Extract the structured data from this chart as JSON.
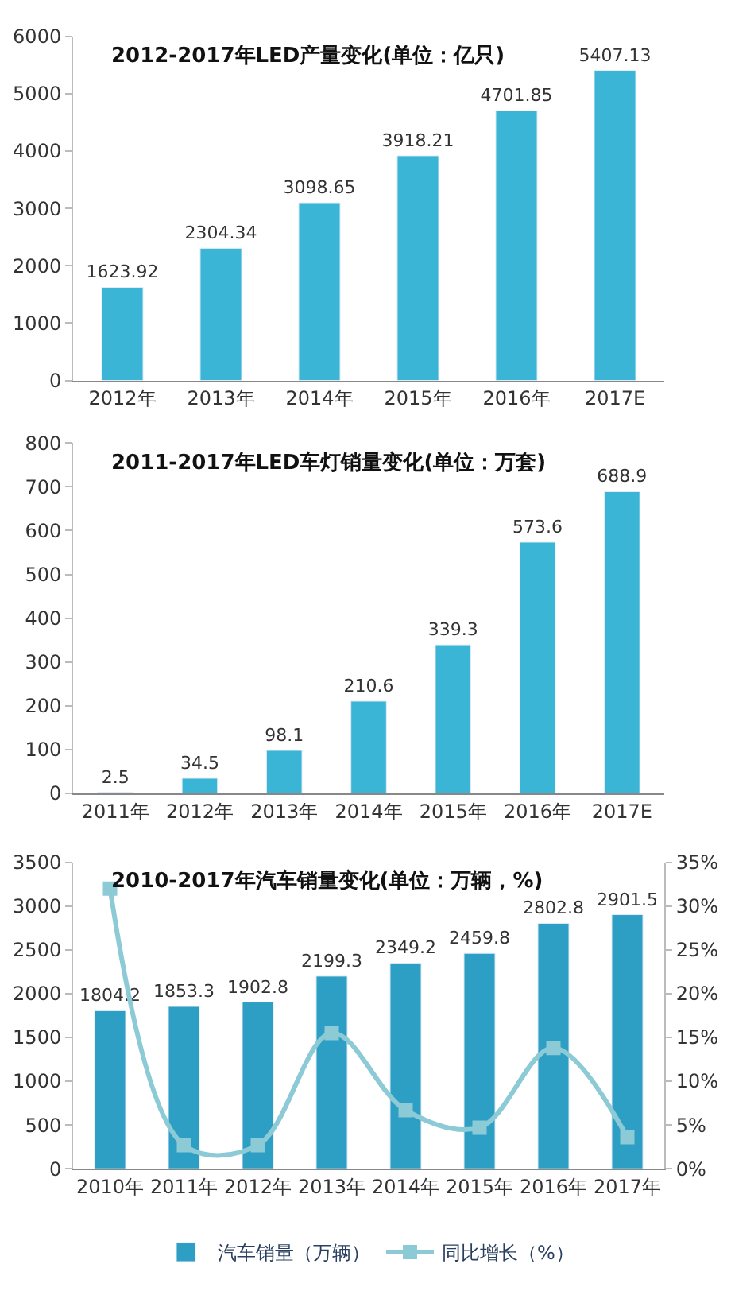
{
  "chart_data": [
    {
      "type": "bar",
      "title": "2012-2017年LED产量变化(单位：亿只)",
      "categories": [
        "2012年",
        "2013年",
        "2014年",
        "2015年",
        "2016年",
        "2017E"
      ],
      "series": [
        {
          "color": "#3bb5d6",
          "values": [
            1623.92,
            2304.34,
            3098.65,
            3918.21,
            4701.85,
            5407.13
          ]
        }
      ],
      "ylim": [
        0,
        6000
      ],
      "yticks": [
        0,
        1000,
        2000,
        3000,
        4000,
        5000,
        6000
      ],
      "data_labels": true
    },
    {
      "type": "bar",
      "title": "2011-2017年LED车灯销量变化(单位：万套)",
      "categories": [
        "2011年",
        "2012年",
        "2013年",
        "2014年",
        "2015年",
        "2016年",
        "2017E"
      ],
      "series": [
        {
          "color": "#3bb5d6",
          "values": [
            2.5,
            34.5,
            98.1,
            210.6,
            339.3,
            573.6,
            688.9
          ]
        }
      ],
      "ylim": [
        0,
        800
      ],
      "yticks": [
        0,
        100,
        200,
        300,
        400,
        500,
        600,
        700,
        800
      ],
      "data_labels": true
    },
    {
      "type": "bar",
      "title": "2010-2017年汽车销量变化(单位：万辆，%)",
      "categories": [
        "2010年",
        "2011年",
        "2012年",
        "2013年",
        "2014年",
        "2015年",
        "2016年",
        "2017年"
      ],
      "series": [
        {
          "name": "汽车销量（万辆）",
          "color": "#2e9fc4",
          "values": [
            1804.2,
            1853.3,
            1902.8,
            2199.3,
            2349.2,
            2459.8,
            2802.8,
            2901.5
          ],
          "value_labels": [
            "1804.2",
            "1853.3",
            "1902.8",
            "2199.3",
            "2349.2",
            "2459.8",
            "2802.8",
            "2901.5"
          ]
        },
        {
          "name": "同比增长（%）",
          "type": "line",
          "axis": "y2",
          "color": "#8ccad6",
          "marker": "square",
          "values": [
            32,
            2.7,
            2.7,
            15.5,
            6.7,
            4.7,
            13.8,
            3.6
          ]
        }
      ],
      "ylim": [
        0,
        3500
      ],
      "yticks": [
        0,
        500,
        1000,
        1500,
        2000,
        2500,
        3000,
        3500
      ],
      "y2lim": [
        0,
        35
      ],
      "y2ticks": [
        {
          "value": 0,
          "label": "0%"
        },
        {
          "value": 5,
          "label": "5%"
        },
        {
          "value": 10,
          "label": "10%"
        },
        {
          "value": 15,
          "label": "15%"
        },
        {
          "value": 20,
          "label": "20%"
        },
        {
          "value": 25,
          "label": "25%"
        },
        {
          "value": 30,
          "label": "30%"
        },
        {
          "value": 35,
          "label": "35%"
        }
      ],
      "legend": "bottom"
    }
  ]
}
